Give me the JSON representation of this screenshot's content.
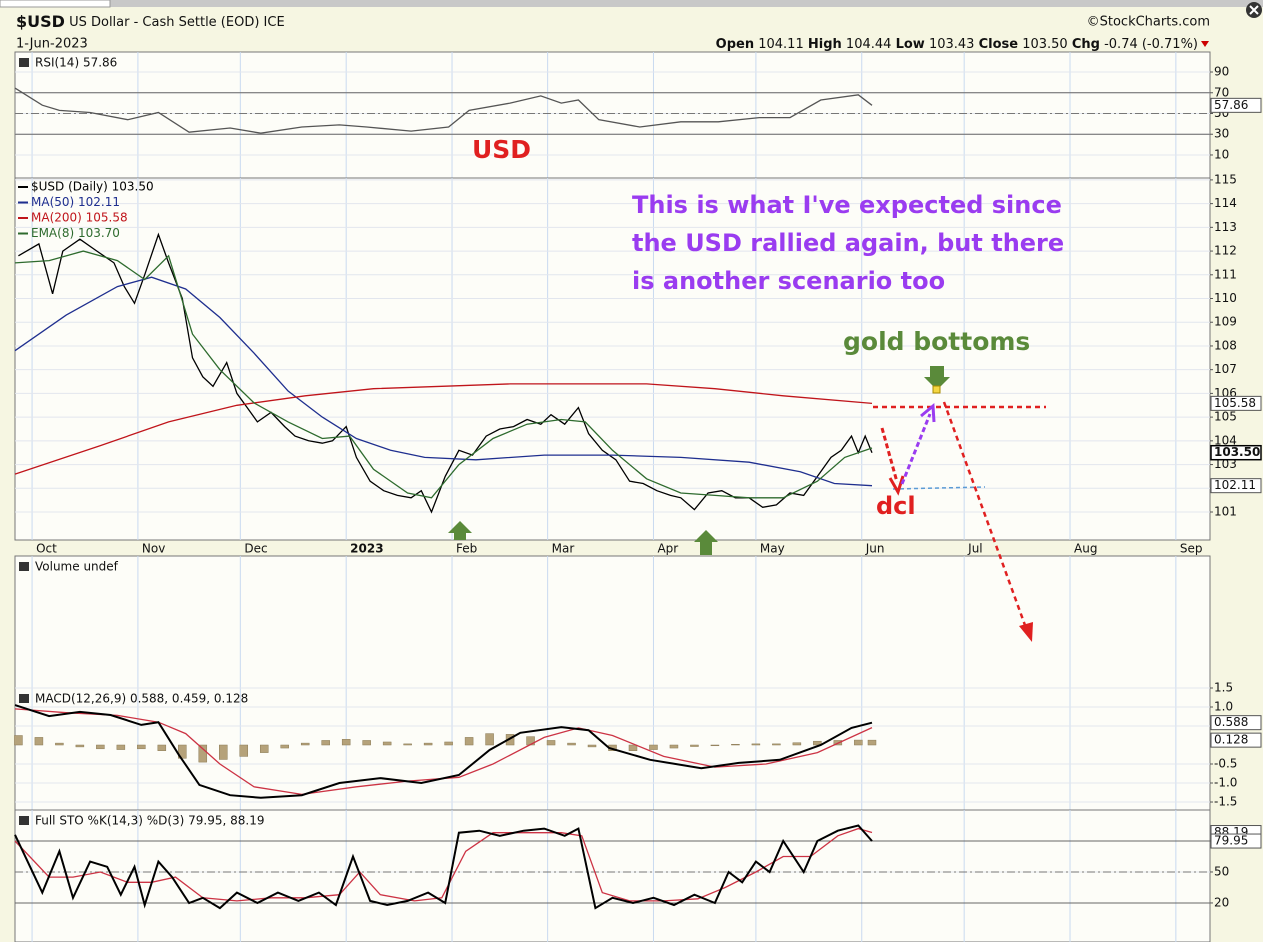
{
  "header": {
    "symbol": "$USD",
    "name": "US Dollar - Cash Settle (EOD) ICE",
    "date": "1-Jun-2023",
    "source": "©StockCharts.com",
    "quote": [
      {
        "label": "Open",
        "value": "104.11"
      },
      {
        "label": "High",
        "value": "104.44"
      },
      {
        "label": "Low",
        "value": "103.43"
      },
      {
        "label": "Close",
        "value": "103.50"
      },
      {
        "label": "Chg",
        "value": "-0.74 (-0.71%)"
      }
    ]
  },
  "chart_data": [
    {
      "type": "line",
      "title": "RSI(14) 57.86",
      "ylim": [
        -12.2,
        109.3
      ],
      "yticks": [
        90,
        70,
        50,
        30,
        10
      ],
      "reference_lines": [
        30,
        70
      ],
      "center_line": 50,
      "series": [
        {
          "color": "#555555",
          "x": [
            -5,
            3,
            8,
            17,
            28,
            37,
            46,
            58,
            67,
            79,
            90,
            98,
            111,
            122,
            128,
            140,
            149,
            155,
            160,
            166,
            178,
            190,
            201,
            213,
            222,
            231,
            242,
            246
          ],
          "values": [
            74.5,
            58,
            53,
            51,
            44,
            51,
            32,
            36,
            31,
            37,
            39,
            37,
            33,
            37,
            53,
            60,
            67,
            60,
            63,
            44,
            37,
            42,
            42,
            46,
            46,
            63,
            68,
            57.86
          ]
        }
      ],
      "tags": [
        57.86
      ],
      "annotations": [
        "USD"
      ]
    },
    {
      "type": "line",
      "xlim": [
        -5,
        345
      ],
      "ylim": [
        99.82,
        115.08
      ],
      "yticks": [
        101,
        102,
        103,
        104,
        105,
        106,
        107,
        108,
        109,
        110,
        111,
        112,
        113,
        114,
        115
      ],
      "xticks": [
        {
          "value": 0,
          "label": "Oct"
        },
        {
          "value": 31,
          "label": "Nov"
        },
        {
          "value": 61,
          "label": "Dec"
        },
        {
          "value": 92,
          "label": "2023"
        },
        {
          "value": 123,
          "label": "Feb"
        },
        {
          "value": 151,
          "label": "Mar"
        },
        {
          "value": 182,
          "label": "Apr"
        },
        {
          "value": 212,
          "label": "May"
        },
        {
          "value": 243,
          "label": "Jun"
        },
        {
          "value": 273,
          "label": "Jul"
        },
        {
          "value": 304,
          "label": "Aug"
        },
        {
          "value": 335,
          "label": "Sep"
        }
      ],
      "series": [
        {
          "name": "$USD (Daily) 103.50",
          "color": "#000000",
          "x": [
            -4,
            2,
            6,
            9,
            14,
            19,
            24,
            27,
            30,
            33,
            37,
            40,
            44,
            47,
            50,
            53,
            57,
            60,
            63,
            66,
            70,
            74,
            77,
            81,
            85,
            88,
            92,
            95,
            99,
            103,
            107,
            111,
            114,
            117,
            121,
            125,
            129,
            133,
            137,
            141,
            145,
            149,
            152,
            156,
            160,
            163,
            167,
            171,
            175,
            179,
            183,
            187,
            190,
            194,
            198,
            202,
            206,
            210,
            214,
            218,
            222,
            226,
            230,
            234,
            237,
            240,
            242,
            244,
            246
          ],
          "values": [
            111.8,
            112.3,
            110.2,
            112.0,
            112.5,
            112.0,
            111.5,
            110.5,
            109.8,
            111.0,
            112.7,
            111.5,
            110.0,
            107.5,
            106.7,
            106.3,
            107.3,
            106.0,
            105.4,
            104.8,
            105.2,
            104.6,
            104.2,
            104.0,
            103.9,
            104.0,
            104.6,
            103.3,
            102.3,
            101.9,
            101.7,
            101.6,
            101.9,
            101.0,
            102.5,
            103.6,
            103.4,
            104.2,
            104.5,
            104.6,
            104.9,
            104.7,
            105.1,
            104.7,
            105.4,
            104.3,
            103.6,
            103.2,
            102.3,
            102.2,
            101.9,
            101.7,
            101.6,
            101.1,
            101.8,
            101.9,
            101.6,
            101.6,
            101.2,
            101.3,
            101.8,
            101.7,
            102.5,
            103.3,
            103.6,
            104.2,
            103.5,
            104.2,
            103.5
          ]
        },
        {
          "name": "MA(50) 102.11",
          "color": "#1f2f8f",
          "x": [
            -5,
            10,
            25,
            35,
            45,
            55,
            65,
            75,
            85,
            95,
            105,
            115,
            130,
            150,
            170,
            190,
            210,
            225,
            235,
            246
          ],
          "values": [
            107.8,
            109.3,
            110.5,
            110.9,
            110.4,
            109.2,
            107.7,
            106.1,
            105.0,
            104.1,
            103.6,
            103.3,
            103.2,
            103.4,
            103.4,
            103.3,
            103.1,
            102.7,
            102.2,
            102.11
          ]
        },
        {
          "name": "MA(200) 105.58",
          "color": "#c0151b",
          "x": [
            -5,
            20,
            40,
            60,
            80,
            100,
            120,
            140,
            160,
            180,
            200,
            220,
            246
          ],
          "values": [
            102.6,
            103.8,
            104.8,
            105.5,
            105.9,
            106.2,
            106.3,
            106.4,
            106.4,
            106.4,
            106.2,
            105.9,
            105.58
          ]
        },
        {
          "name": "EMA(8) 103.70",
          "color": "#2e6b2e",
          "x": [
            -5,
            5,
            15,
            25,
            33,
            40,
            47,
            55,
            65,
            75,
            85,
            93,
            100,
            110,
            117,
            125,
            135,
            145,
            155,
            162,
            170,
            180,
            190,
            200,
            210,
            220,
            230,
            238,
            246
          ],
          "values": [
            111.5,
            111.6,
            112.0,
            111.6,
            110.8,
            111.8,
            108.5,
            107.0,
            105.6,
            104.8,
            104.1,
            104.2,
            102.8,
            101.8,
            101.6,
            103.0,
            104.1,
            104.7,
            104.9,
            104.8,
            103.6,
            102.4,
            101.8,
            101.7,
            101.6,
            101.6,
            102.3,
            103.3,
            103.7
          ]
        }
      ],
      "tags": [
        105.58,
        {
          "value": 103.5,
          "label": "103.50"
        },
        102.11
      ],
      "annotations": [
        "This is what I've expected since",
        "the USD rallied again, but there",
        "is another scenario too",
        "gold bottoms",
        "dcl"
      ]
    },
    {
      "type": "bar",
      "title": "Volume undef"
    },
    {
      "type": "line",
      "title": "MACD(12,26,9) 0.588, 0.459, 0.128",
      "ylim": [
        -1.71,
        1.5
      ],
      "yticks": [
        1.5,
        {
          "value": 1,
          "label": "1.0"
        },
        0.5,
        -0.5,
        {
          "value": -1,
          "label": "-1.0"
        },
        -1.5
      ],
      "series": [
        {
          "type": "bar",
          "color": "#b5a27a",
          "x": [
            -4,
            2,
            8,
            14,
            20,
            26,
            32,
            38,
            44,
            50,
            56,
            62,
            68,
            74,
            80,
            86,
            92,
            98,
            104,
            110,
            116,
            122,
            128,
            134,
            140,
            146,
            152,
            158,
            164,
            170,
            176,
            182,
            188,
            194,
            200,
            206,
            212,
            218,
            224,
            230,
            236,
            242,
            246
          ],
          "values": [
            0.25,
            0.2,
            0.05,
            -0.05,
            -0.1,
            -0.12,
            -0.1,
            -0.15,
            -0.35,
            -0.45,
            -0.38,
            -0.3,
            -0.2,
            -0.08,
            0.05,
            0.12,
            0.15,
            0.12,
            0.08,
            0.03,
            0.05,
            0.08,
            0.2,
            0.3,
            0.28,
            0.22,
            0.12,
            0.05,
            -0.05,
            -0.15,
            -0.15,
            -0.12,
            -0.08,
            -0.04,
            -0.02,
            0.02,
            0.03,
            0.03,
            0.06,
            0.1,
            0.12,
            0.13,
            0.128
          ]
        },
        {
          "color": "#cc3344",
          "x": [
            -5,
            10,
            25,
            37,
            45,
            55,
            65,
            79,
            95,
            110,
            125,
            135,
            150,
            160,
            170,
            185,
            200,
            215,
            230,
            246
          ],
          "values": [
            0.95,
            0.85,
            0.78,
            0.6,
            0.3,
            -0.5,
            -1.1,
            -1.3,
            -1.1,
            -0.95,
            -0.85,
            -0.5,
            0.2,
            0.45,
            0.25,
            -0.3,
            -0.58,
            -0.5,
            -0.2,
            0.459
          ]
        },
        {
          "color": "#000000",
          "x": [
            -5,
            5,
            14,
            23,
            32,
            37,
            43,
            49,
            58,
            67,
            79,
            90,
            102,
            114,
            125,
            134,
            143,
            155,
            163,
            169,
            181,
            196,
            207,
            219,
            231,
            240,
            246
          ],
          "values": [
            1.05,
            0.76,
            0.87,
            0.79,
            0.53,
            0.6,
            -0.26,
            -1.05,
            -1.32,
            -1.39,
            -1.32,
            -1.0,
            -0.87,
            -1.0,
            -0.79,
            -0.13,
            0.32,
            0.47,
            0.39,
            -0.08,
            -0.39,
            -0.61,
            -0.47,
            -0.39,
            0,
            0.45,
            0.588
          ]
        }
      ],
      "tags": [
        0.588,
        0.128
      ]
    },
    {
      "type": "line",
      "title": "Full STO %K(14,3) %D(3) 79.95, 88.19",
      "ylim": [
        -17.8,
        110
      ],
      "yticks": [
        80,
        50,
        20
      ],
      "reference_lines": [
        20,
        80
      ],
      "center_line": 50,
      "series": [
        {
          "color": "#cc3344",
          "x": [
            -5,
            5,
            12,
            20,
            28,
            35,
            42,
            50,
            60,
            70,
            80,
            90,
            96,
            102,
            112,
            120,
            127,
            135,
            145,
            155,
            161,
            167,
            175,
            185,
            195,
            203,
            212,
            220,
            228,
            236,
            242,
            246
          ],
          "values": [
            80,
            45,
            45,
            50,
            40,
            40,
            45,
            25,
            22,
            25,
            25,
            28,
            50,
            28,
            22,
            25,
            70,
            88,
            88,
            88,
            85,
            30,
            22,
            22,
            24,
            35,
            50,
            65,
            65,
            85,
            92,
            88.19
          ]
        },
        {
          "color": "#000000",
          "x": [
            -5,
            3,
            8,
            12,
            17,
            22,
            26,
            30,
            33,
            37,
            41,
            46,
            50,
            55,
            60,
            66,
            72,
            78,
            84,
            89,
            94,
            99,
            104,
            110,
            116,
            121,
            125,
            131,
            137,
            144,
            150,
            156,
            160,
            165,
            170,
            176,
            182,
            188,
            194,
            200,
            204,
            208,
            212,
            216,
            220,
            226,
            230,
            236,
            242,
            246
          ],
          "values": [
            86,
            30,
            70,
            25,
            60,
            55,
            28,
            55,
            18,
            60,
            45,
            20,
            25,
            15,
            30,
            20,
            30,
            22,
            30,
            18,
            65,
            22,
            18,
            22,
            30,
            20,
            88,
            90,
            85,
            90,
            92,
            85,
            92,
            15,
            25,
            20,
            25,
            18,
            28,
            20,
            50,
            40,
            60,
            50,
            80,
            50,
            80,
            90,
            95,
            79.95
          ]
        }
      ],
      "tags": [
        88.19,
        79.95
      ]
    }
  ]
}
